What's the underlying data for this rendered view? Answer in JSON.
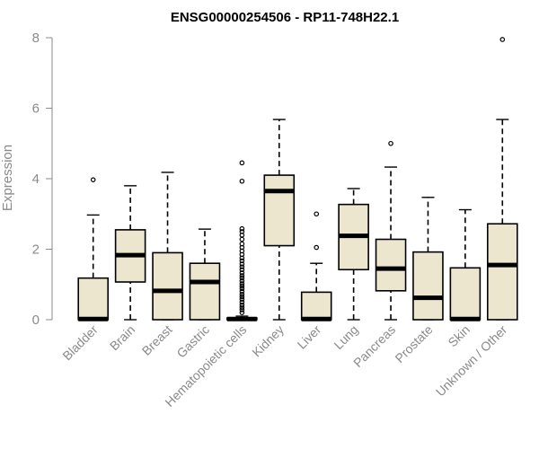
{
  "chart_data": {
    "type": "boxplot",
    "title": "ENSG00000254506 - RP11-748H22.1",
    "ylabel": "Expression",
    "xlabel": "",
    "ylim": [
      0,
      8
    ],
    "yticks": [
      0,
      2,
      4,
      6,
      8
    ],
    "grid": false,
    "box_color": "#ede6cf",
    "categories": [
      "Bladder",
      "Brain",
      "Breast",
      "Gastric",
      "Hematopoietic cells",
      "Kidney",
      "Liver",
      "Lung",
      "Pancreas",
      "Prostate",
      "Skin",
      "Unknown / Other"
    ],
    "boxes": [
      {
        "min": 0,
        "q1": 0,
        "median": 0.02,
        "q3": 1.18,
        "max": 2.97,
        "outliers": [
          3.97
        ]
      },
      {
        "min": 0,
        "q1": 1.07,
        "median": 1.83,
        "q3": 2.55,
        "max": 3.8,
        "outliers": []
      },
      {
        "min": 0,
        "q1": 0,
        "median": 0.82,
        "q3": 1.9,
        "max": 4.18,
        "outliers": []
      },
      {
        "min": 0,
        "q1": 0,
        "median": 1.07,
        "q3": 1.6,
        "max": 2.57,
        "outliers": []
      },
      {
        "min": 0,
        "q1": 0,
        "median": 0.02,
        "q3": 0.05,
        "max": 0.1,
        "outliers": [
          0.2,
          0.28,
          0.35,
          0.42,
          0.5,
          0.58,
          0.65,
          0.72,
          0.8,
          0.88,
          0.95,
          1.02,
          1.1,
          1.18,
          1.25,
          1.33,
          1.42,
          1.5,
          1.58,
          1.67,
          1.75,
          1.85,
          1.95,
          2.05,
          2.15,
          2.28,
          2.4,
          2.5,
          2.58,
          3.93,
          4.45
        ]
      },
      {
        "min": 0,
        "q1": 2.1,
        "median": 3.65,
        "q3": 4.1,
        "max": 5.68,
        "outliers": []
      },
      {
        "min": 0,
        "q1": 0,
        "median": 0.02,
        "q3": 0.78,
        "max": 1.6,
        "outliers": [
          2.05,
          3.0
        ]
      },
      {
        "min": 0,
        "q1": 1.42,
        "median": 2.38,
        "q3": 3.27,
        "max": 3.72,
        "outliers": []
      },
      {
        "min": 0,
        "q1": 0.82,
        "median": 1.45,
        "q3": 2.28,
        "max": 4.33,
        "outliers": [
          5.0
        ]
      },
      {
        "min": 0,
        "q1": 0,
        "median": 0.62,
        "q3": 1.92,
        "max": 3.47,
        "outliers": []
      },
      {
        "min": 0,
        "q1": 0,
        "median": 0.02,
        "q3": 1.47,
        "max": 3.12,
        "outliers": []
      },
      {
        "min": 0,
        "q1": 0,
        "median": 1.55,
        "q3": 2.72,
        "max": 5.68,
        "outliers": [
          7.95
        ]
      }
    ]
  }
}
